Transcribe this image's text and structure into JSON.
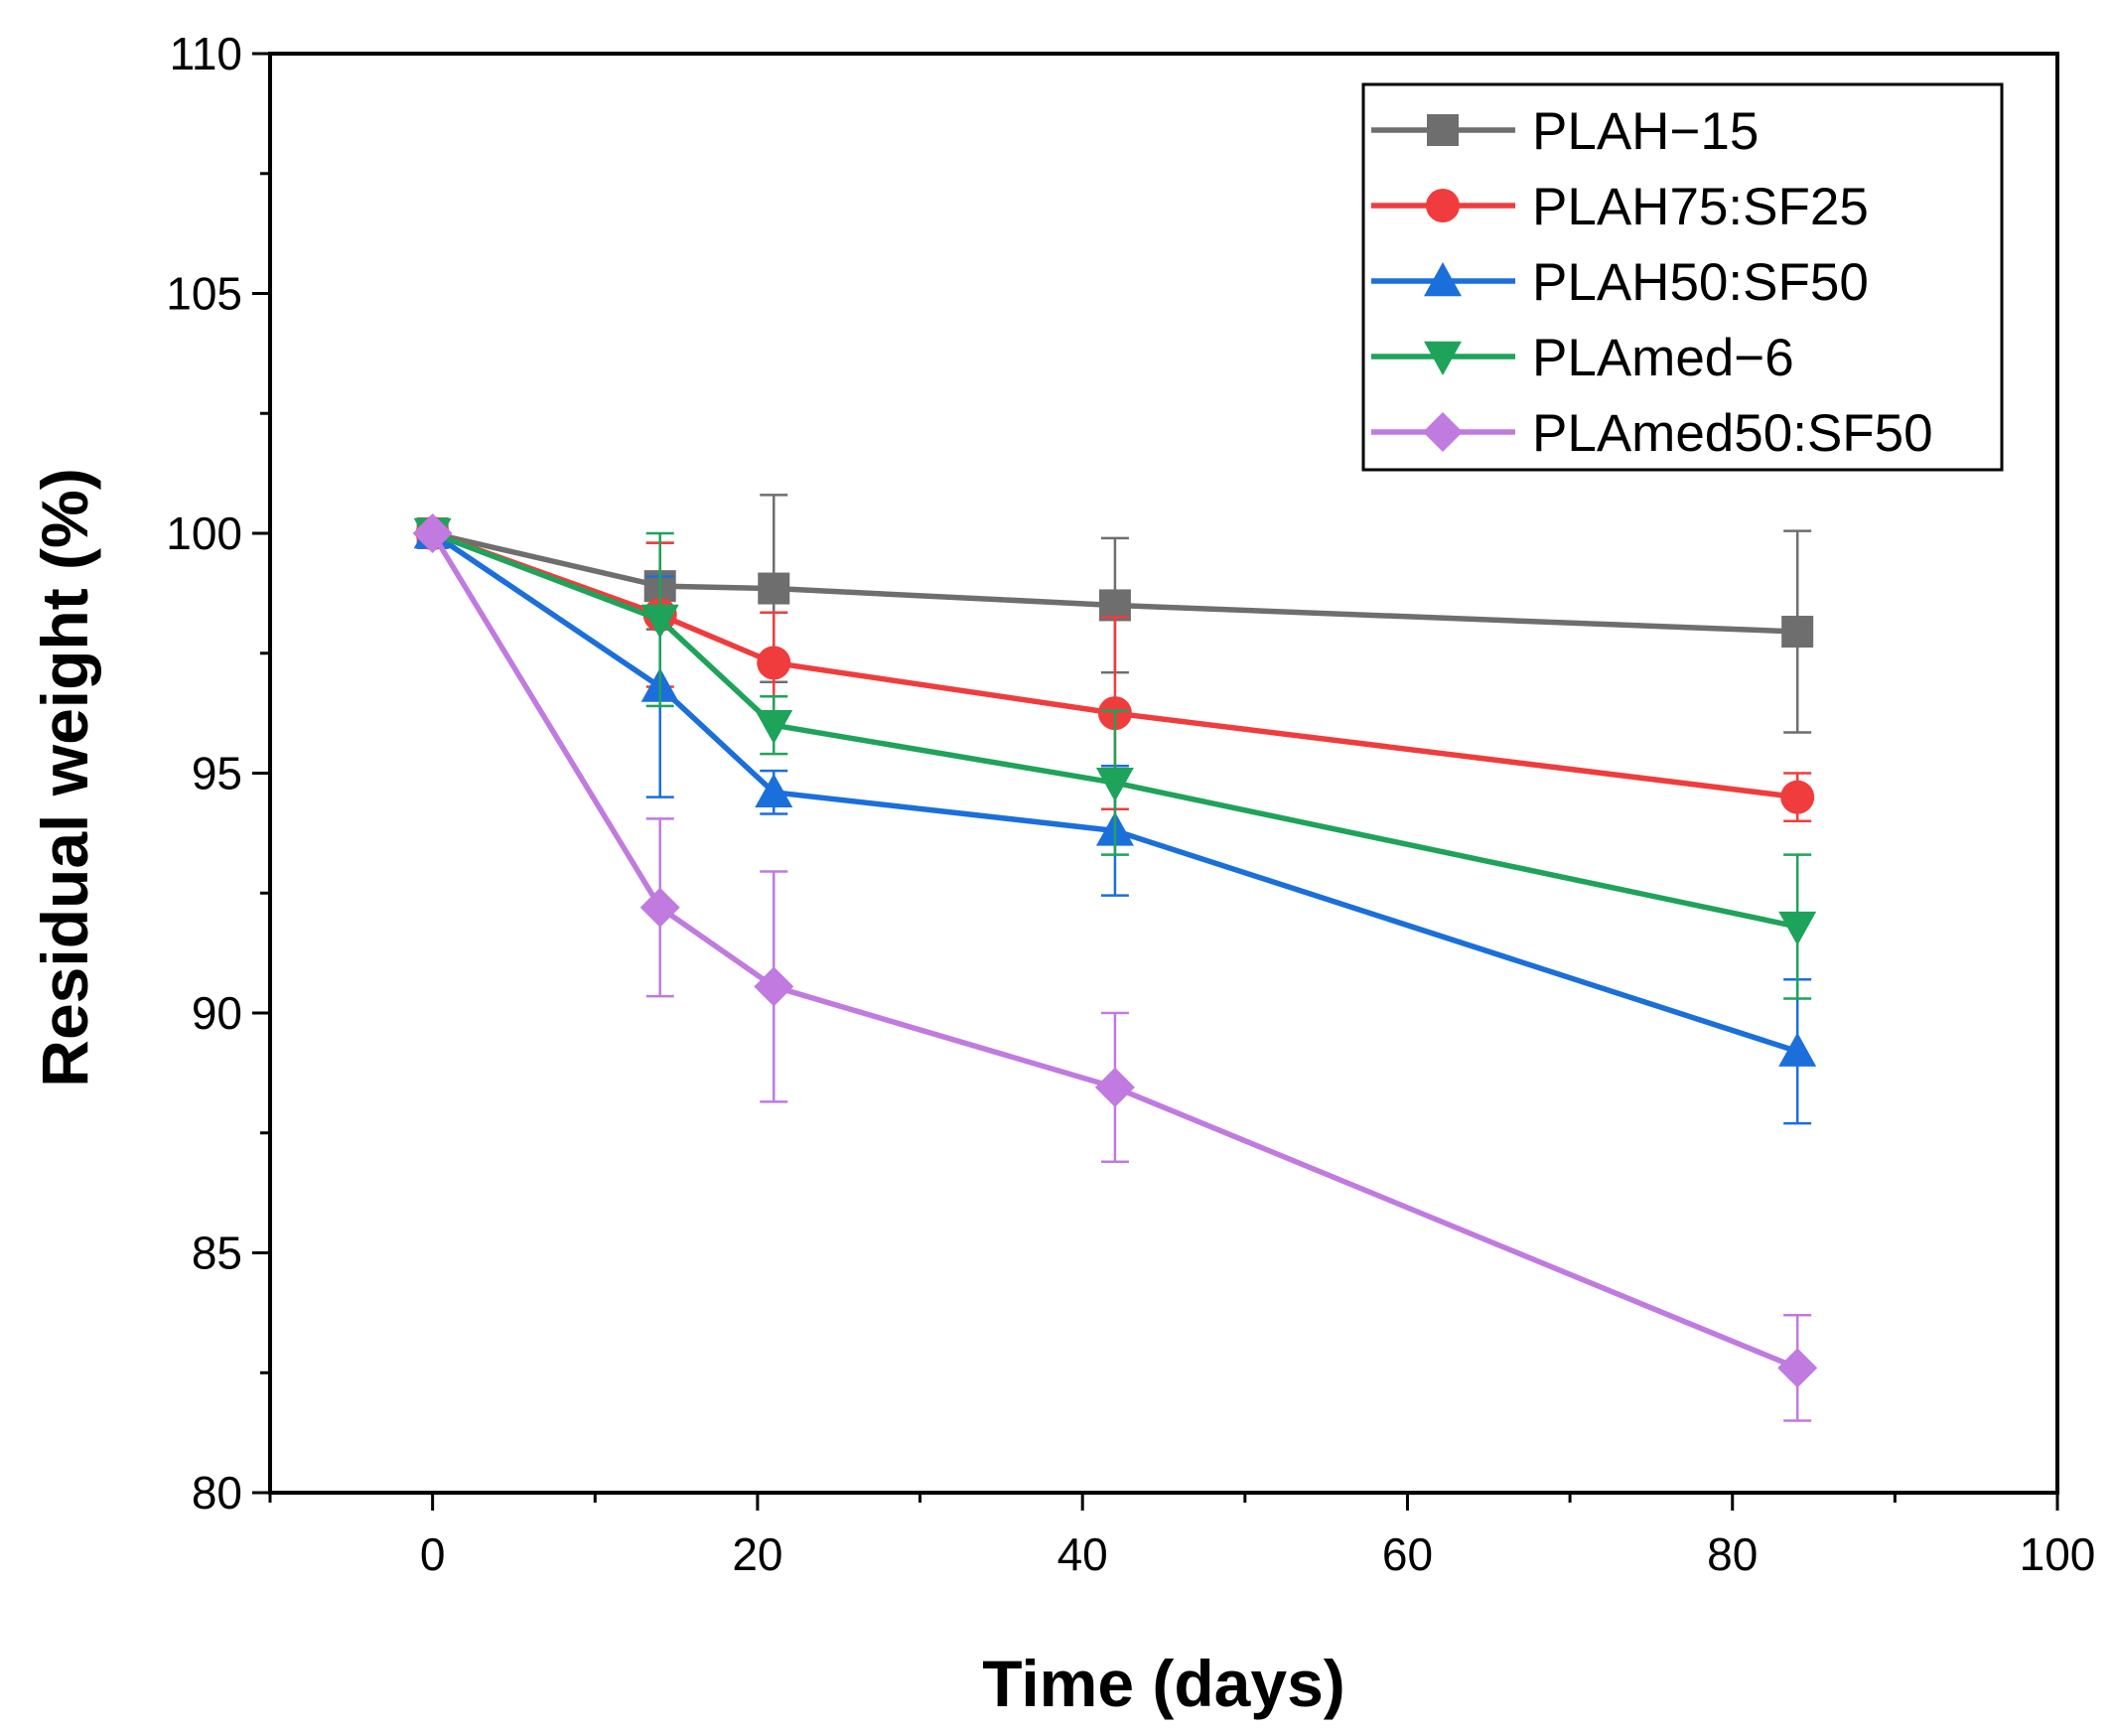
{
  "chart_data": {
    "type": "line",
    "title": "",
    "xlabel": "Time (days)",
    "ylabel": "Residual weight (%)",
    "xlim": [
      -10,
      100
    ],
    "ylim": [
      80,
      110
    ],
    "x_ticks": [
      0,
      20,
      40,
      60,
      80,
      100
    ],
    "y_ticks": [
      80,
      85,
      90,
      95,
      100,
      105,
      110
    ],
    "legend_position": "top-right",
    "grid": false,
    "series": [
      {
        "name": "PLAH−15",
        "color": "#6e6e6e",
        "marker": "square",
        "x": [
          0,
          14,
          21,
          42,
          84
        ],
        "y": [
          100,
          98.9,
          98.85,
          98.5,
          97.95
        ],
        "err": [
          0,
          0.9,
          1.95,
          1.4,
          2.1
        ]
      },
      {
        "name": "PLAH75:SF25",
        "color": "#f03c3c",
        "marker": "circle",
        "x": [
          0,
          14,
          21,
          42,
          84
        ],
        "y": [
          100,
          98.3,
          97.3,
          96.25,
          94.5
        ],
        "err": [
          0,
          1.5,
          1.05,
          2.0,
          0.5
        ]
      },
      {
        "name": "PLAH50:SF50",
        "color": "#1a6fdb",
        "marker": "triangle-up",
        "x": [
          0,
          14,
          21,
          42,
          84
        ],
        "y": [
          100,
          96.8,
          94.6,
          93.8,
          89.2
        ],
        "err": [
          0,
          2.3,
          0.45,
          1.35,
          1.5
        ]
      },
      {
        "name": "PLAmed−6",
        "color": "#1ea35a",
        "marker": "triangle-down",
        "x": [
          0,
          14,
          21,
          42,
          84
        ],
        "y": [
          100,
          98.2,
          96.0,
          94.8,
          91.8
        ],
        "err": [
          0,
          1.8,
          0.6,
          1.5,
          1.5
        ]
      },
      {
        "name": "PLAmed50:SF50",
        "color": "#c07ae0",
        "marker": "diamond",
        "x": [
          0,
          14,
          21,
          42,
          84
        ],
        "y": [
          100,
          92.2,
          90.55,
          88.45,
          82.6
        ],
        "err": [
          0,
          1.85,
          2.4,
          1.55,
          1.1
        ]
      }
    ]
  }
}
